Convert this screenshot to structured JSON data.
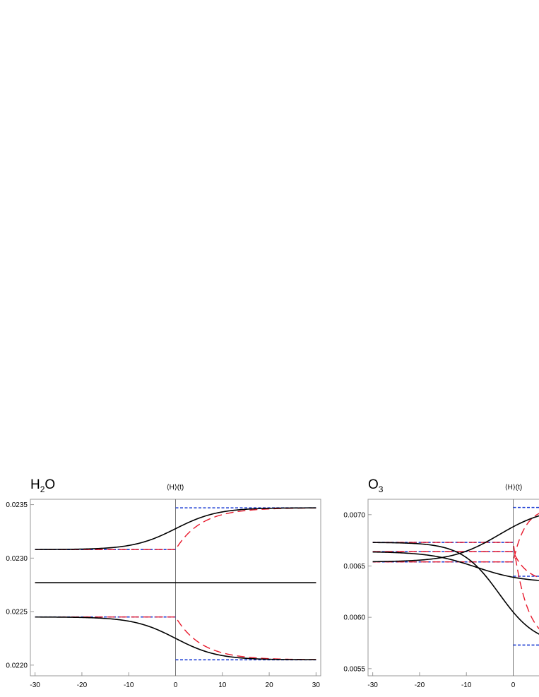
{
  "chart_data": [
    {
      "type": "line",
      "title": "H",
      "title_sub": "2",
      "title_suffix": "O",
      "marker_label": "⟨H⟩(t)",
      "xlim": [
        -31,
        31
      ],
      "ylim": [
        0.0219,
        0.02355
      ],
      "xticks": [
        -30,
        -20,
        -10,
        0,
        10,
        20,
        30
      ],
      "xtick_labels": [
        "-30",
        "-20",
        "-10",
        "0",
        "10",
        "20",
        "30"
      ],
      "yticks": [
        0.022,
        0.0225,
        0.023,
        0.0235
      ],
      "ytick_labels": [
        "0.0220",
        "0.0225",
        "0.0230",
        "0.0235"
      ],
      "marker_x": 0,
      "colors": {
        "black": "#000000",
        "red": "#e8192c",
        "blue": "#1f3fd4",
        "marker": "#777777",
        "frame": "#999999"
      },
      "series": [
        {
          "style": "black",
          "kind": "sigmoid",
          "y0": 0.02308,
          "y1": 0.02347,
          "center": 0,
          "scale": 4.5
        },
        {
          "style": "black",
          "kind": "const",
          "y0": 0.02277
        },
        {
          "style": "black",
          "kind": "sigmoid",
          "y0": 0.02245,
          "y1": 0.02205,
          "center": 0,
          "scale": 4.5
        },
        {
          "style": "red",
          "kind": "step-relax",
          "y0": 0.02308,
          "y1": 0.02347,
          "tau": 5.5
        },
        {
          "style": "red",
          "kind": "const",
          "y0": 0.02277
        },
        {
          "style": "red",
          "kind": "step-relax",
          "y0": 0.02245,
          "y1": 0.02205,
          "tau": 5.5
        },
        {
          "style": "blue",
          "kind": "step",
          "y0": 0.02308,
          "y1": 0.02347
        },
        {
          "style": "blue",
          "kind": "const",
          "y0": 0.02277
        },
        {
          "style": "blue",
          "kind": "step",
          "y0": 0.02245,
          "y1": 0.02205
        }
      ]
    },
    {
      "type": "line",
      "title": "O",
      "title_sub": "3",
      "title_suffix": "",
      "marker_label": "⟨H⟩(t)",
      "xlim": [
        -31,
        31
      ],
      "ylim": [
        0.00543,
        0.00715
      ],
      "xticks": [
        -30,
        -20,
        -10,
        0
      ],
      "xtick_labels": [
        "-30",
        "-20",
        "-10",
        "0"
      ],
      "yticks": [
        0.0055,
        0.006,
        0.0065,
        0.007
      ],
      "ytick_labels": [
        "0.0055",
        "0.0060",
        "0.0065",
        "0.0070"
      ],
      "marker_x": 0,
      "colors": {
        "black": "#000000",
        "red": "#e8192c",
        "blue": "#1f3fd4",
        "marker": "#777777",
        "frame": "#999999"
      },
      "series": [
        {
          "style": "black",
          "kind": "sigmoid",
          "y0": 0.00654,
          "y1": 0.00707,
          "center": -3,
          "scale": 5
        },
        {
          "style": "black",
          "kind": "sigmoid",
          "y0": 0.00664,
          "y1": 0.00634,
          "center": -8,
          "scale": 5
        },
        {
          "style": "black",
          "kind": "sigmoid",
          "y0": 0.00673,
          "y1": 0.00573,
          "center": -3,
          "scale": 4
        },
        {
          "style": "red",
          "kind": "step-relax",
          "y0": 0.00654,
          "y1": 0.00707,
          "tau": 2.5
        },
        {
          "style": "red",
          "kind": "step-relax",
          "y0": 0.00664,
          "y1": 0.00634,
          "tau": 3
        },
        {
          "style": "red",
          "kind": "step-relax",
          "y0": 0.00673,
          "y1": 0.00573,
          "tau": 3
        },
        {
          "style": "blue",
          "kind": "step",
          "y0": 0.00654,
          "y1": 0.00707
        },
        {
          "style": "blue",
          "kind": "step",
          "y0": 0.00664,
          "y1": 0.0064
        },
        {
          "style": "blue",
          "kind": "step",
          "y0": 0.00673,
          "y1": 0.00573
        }
      ]
    }
  ]
}
